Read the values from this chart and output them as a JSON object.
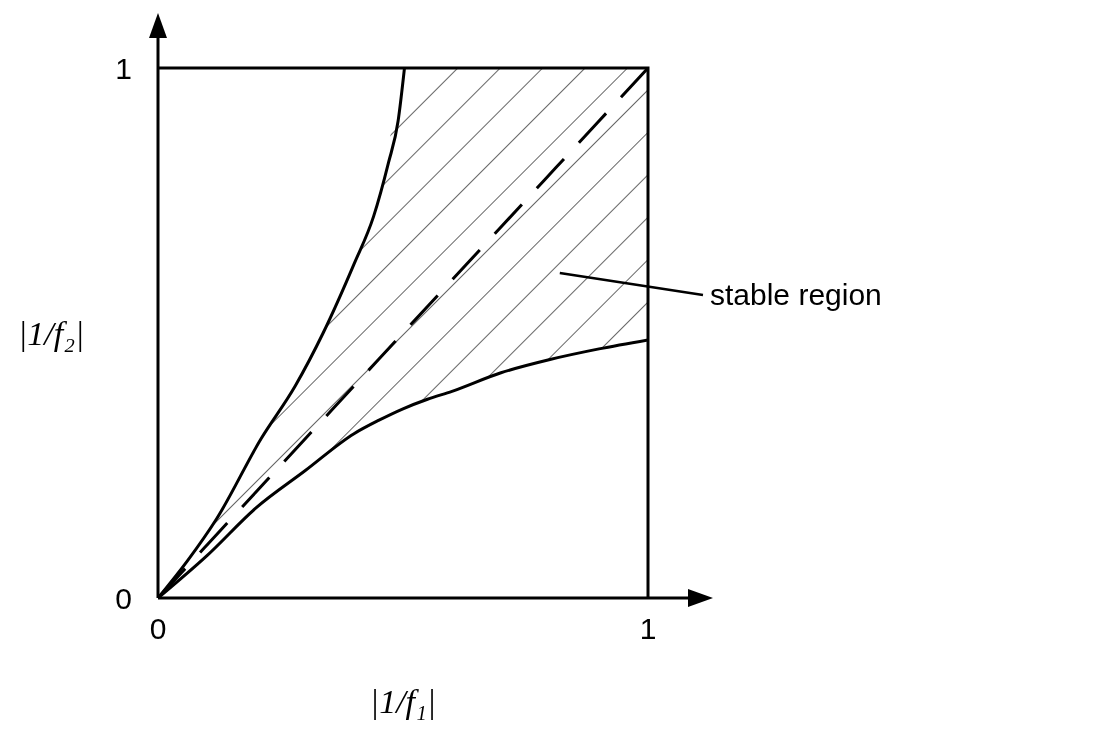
{
  "chart_data": {
    "type": "line",
    "xlabel": "|1/f₁|",
    "ylabel": "|1/f₂|",
    "series": [
      {
        "color": "#000000",
        "line_style": "dashed",
        "x": [
          0,
          0.1,
          0.2,
          0.3,
          0.4,
          0.45,
          0.5,
          0.55,
          0.6,
          0.7,
          0.8,
          0.9,
          1
        ],
        "values": [
          0,
          0.1,
          0.2,
          0.3,
          0.4,
          0.45,
          0.5,
          0.55,
          0.6,
          0.7,
          0.8,
          0.9,
          1
        ],
        "lower": [
          0,
          0.08,
          0.17,
          0.24,
          0.31,
          0.335,
          0.357,
          0.375,
          0.39,
          0.425,
          0.45,
          0.47,
          0.487
        ],
        "upper": [
          0,
          0.12,
          0.28,
          0.43,
          0.63,
          0.75,
          0.97,
          1,
          1,
          1,
          1,
          1,
          1
        ]
      },
      {
        "color": "#000000",
        "line_style": "solid",
        "x": [
          0,
          0.1,
          0.2,
          0.3,
          0.4,
          0.45,
          0.5,
          0.55,
          0.6,
          0.7,
          0.8,
          0.9,
          1
        ],
        "values": [
          0,
          0.08,
          0.17,
          0.24,
          0.31,
          0.335,
          0.357,
          0.375,
          0.39,
          0.425,
          0.45,
          0.47,
          0.487
        ]
      },
      {
        "color": "#000000",
        "line_style": "solid",
        "x": [
          0,
          0.06,
          0.12,
          0.21,
          0.28,
          0.337,
          0.4,
          0.44,
          0.47,
          0.49,
          0.503
        ],
        "values": [
          0,
          0.07,
          0.15,
          0.3,
          0.4,
          0.5,
          0.63,
          0.72,
          0.82,
          0.9,
          1
        ]
      }
    ],
    "xlim": [
      0,
      1
    ],
    "ylim": [
      0,
      1
    ],
    "xticks": [
      0,
      1
    ],
    "yticks": [
      0,
      1
    ],
    "marker": "none",
    "annotations": [
      "stable region"
    ]
  }
}
